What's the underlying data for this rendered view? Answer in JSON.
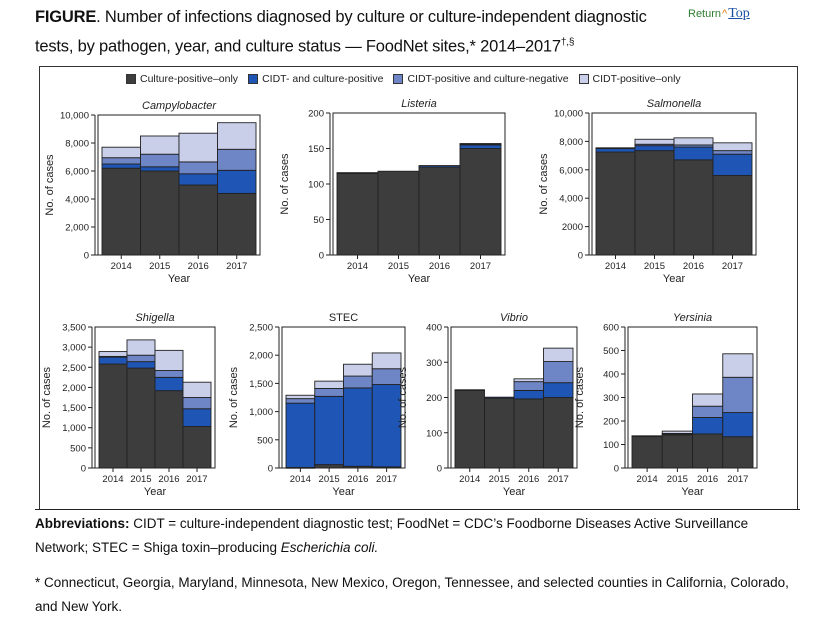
{
  "figure": {
    "label": "FIGURE",
    "title_main": ". Number of infections diagnosed by culture or culture-independent diagnostic tests, by pathogen, year, and culture status — FoodNet sites,",
    "title_star": "*",
    "title_range": " 2014–2017",
    "title_sup": "†,§"
  },
  "return_top": {
    "return_label": "Return",
    "arrow_icon": "^",
    "top_label": "Top"
  },
  "legend": [
    {
      "label": "Culture-positive–only",
      "color": "#3d3d3d"
    },
    {
      "label": "CIDT- and culture-positive",
      "color": "#1f55b5"
    },
    {
      "label": "CIDT-positive and culture-negative",
      "color": "#6f86c6"
    },
    {
      "label": "CIDT-positive–only",
      "color": "#c9cfe9"
    }
  ],
  "abbreviations": {
    "label": "Abbreviations:",
    "text1": " CIDT = culture-independent diagnostic test; FoodNet = CDC’s Foodborne Diseases Active Surveillance Network; STEC = Shiga toxin–producing ",
    "italic": "Escherichia coli.",
    "text2": ""
  },
  "footnote": "* Connecticut, Georgia, Maryland, Minnesota, New Mexico, Oregon, Tennessee, and selected counties in California, Colorado, and New York.",
  "chart_data": [
    {
      "type": "bar",
      "stacked": true,
      "title": "Campylobacter",
      "title_italic": true,
      "xlabel": "Year",
      "ylabel": "No. of cases",
      "categories": [
        "2014",
        "2015",
        "2016",
        "2017"
      ],
      "ylim": [
        0,
        10000
      ],
      "yticks": [
        0,
        2000,
        4000,
        6000,
        8000,
        10000
      ],
      "ytick_labels": [
        "0",
        "2,000",
        "4,000",
        "6,000",
        "8,000",
        "10,000"
      ],
      "series": [
        {
          "name": "Culture-positive–only",
          "values": [
            6200,
            6000,
            5000,
            4400
          ]
        },
        {
          "name": "CIDT- and culture-positive",
          "values": [
            300,
            300,
            800,
            1650
          ]
        },
        {
          "name": "CIDT-positive and culture-negative",
          "values": [
            450,
            900,
            850,
            1500
          ]
        },
        {
          "name": "CIDT-positive–only",
          "values": [
            750,
            1300,
            2050,
            1900
          ]
        }
      ]
    },
    {
      "type": "bar",
      "stacked": true,
      "title": "Listeria",
      "title_italic": true,
      "xlabel": "Year",
      "ylabel": "No. of cases",
      "categories": [
        "2014",
        "2015",
        "2016",
        "2017"
      ],
      "ylim": [
        0,
        200
      ],
      "yticks": [
        0,
        50,
        100,
        150,
        200
      ],
      "ytick_labels": [
        "0",
        "50",
        "100",
        "150",
        "200"
      ],
      "series": [
        {
          "name": "Culture-positive–only",
          "values": [
            115,
            118,
            124,
            150
          ]
        },
        {
          "name": "CIDT- and culture-positive",
          "values": [
            1,
            0,
            2,
            5
          ]
        },
        {
          "name": "CIDT-positive and culture-negative",
          "values": [
            0,
            0,
            0,
            1
          ]
        },
        {
          "name": "CIDT-positive–only",
          "values": [
            0,
            0,
            0,
            1
          ]
        }
      ]
    },
    {
      "type": "bar",
      "stacked": true,
      "title": "Salmonella",
      "title_italic": true,
      "xlabel": "Year",
      "ylabel": "No. of cases",
      "categories": [
        "2014",
        "2015",
        "2016",
        "2017"
      ],
      "ylim": [
        0,
        10000
      ],
      "yticks": [
        0,
        2000,
        4000,
        6000,
        8000,
        10000
      ],
      "ytick_labels": [
        "0",
        "2000",
        "4,000",
        "6,000",
        "8,000",
        "10,000"
      ],
      "series": [
        {
          "name": "Culture-positive–only",
          "values": [
            7250,
            7350,
            6700,
            5600
          ]
        },
        {
          "name": "CIDT- and culture-positive",
          "values": [
            250,
            350,
            900,
            1500
          ]
        },
        {
          "name": "CIDT-positive and culture-negative",
          "values": [
            50,
            100,
            150,
            250
          ]
        },
        {
          "name": "CIDT-positive–only",
          "values": [
            0,
            350,
            500,
            550
          ]
        }
      ]
    },
    {
      "type": "bar",
      "stacked": true,
      "title": "Shigella",
      "title_italic": true,
      "xlabel": "Year",
      "ylabel": "No. of cases",
      "categories": [
        "2014",
        "2015",
        "2016",
        "2017"
      ],
      "ylim": [
        0,
        3500
      ],
      "yticks": [
        0,
        500,
        1000,
        1500,
        2000,
        2500,
        3000,
        3500
      ],
      "ytick_labels": [
        "0",
        "500",
        "1,000",
        "1,500",
        "2,000",
        "2,500",
        "3,000",
        "3,500"
      ],
      "series": [
        {
          "name": "Culture-positive–only",
          "values": [
            2580,
            2480,
            1920,
            1030
          ]
        },
        {
          "name": "CIDT- and culture-positive",
          "values": [
            180,
            160,
            330,
            440
          ]
        },
        {
          "name": "CIDT-positive and culture-negative",
          "values": [
            10,
            160,
            170,
            280
          ]
        },
        {
          "name": "CIDT-positive–only",
          "values": [
            120,
            380,
            500,
            380
          ]
        }
      ]
    },
    {
      "type": "bar",
      "stacked": true,
      "title": "STEC",
      "title_italic": false,
      "xlabel": "Year",
      "ylabel": "No. of cases",
      "categories": [
        "2014",
        "2015",
        "2016",
        "2017"
      ],
      "ylim": [
        0,
        2500
      ],
      "yticks": [
        0,
        500,
        1000,
        1500,
        2000,
        2500
      ],
      "ytick_labels": [
        "0",
        "500",
        "1,000",
        "1,500",
        "2,000",
        "2,500"
      ],
      "series": [
        {
          "name": "Culture-positive–only",
          "values": [
            10,
            60,
            30,
            20
          ]
        },
        {
          "name": "CIDT- and culture-positive",
          "values": [
            1140,
            1210,
            1390,
            1460
          ]
        },
        {
          "name": "CIDT-positive and culture-negative",
          "values": [
            80,
            140,
            210,
            280
          ]
        },
        {
          "name": "CIDT-positive–only",
          "values": [
            60,
            130,
            210,
            280
          ]
        }
      ]
    },
    {
      "type": "bar",
      "stacked": true,
      "title": "Vibrio",
      "title_italic": true,
      "xlabel": "Year",
      "ylabel": "No. of cases",
      "categories": [
        "2014",
        "2015",
        "2016",
        "2017"
      ],
      "ylim": [
        0,
        400
      ],
      "yticks": [
        0,
        100,
        200,
        300,
        400
      ],
      "ytick_labels": [
        "0",
        "100",
        "200",
        "300",
        "400"
      ],
      "series": [
        {
          "name": "Culture-positive–only",
          "values": [
            220,
            198,
            196,
            200
          ]
        },
        {
          "name": "CIDT- and culture-positive",
          "values": [
            2,
            3,
            24,
            42
          ]
        },
        {
          "name": "CIDT-positive and culture-negative",
          "values": [
            0,
            0,
            25,
            60
          ]
        },
        {
          "name": "CIDT-positive–only",
          "values": [
            0,
            0,
            8,
            38
          ]
        }
      ]
    },
    {
      "type": "bar",
      "stacked": true,
      "title": "Yersinia",
      "title_italic": true,
      "xlabel": "Year",
      "ylabel": "No. of cases",
      "categories": [
        "2014",
        "2015",
        "2016",
        "2017"
      ],
      "ylim": [
        0,
        600
      ],
      "yticks": [
        0,
        100,
        200,
        300,
        400,
        500,
        600
      ],
      "ytick_labels": [
        "0",
        "100",
        "200",
        "300",
        "400",
        "500",
        "600"
      ],
      "series": [
        {
          "name": "Culture-positive–only",
          "values": [
            135,
            142,
            145,
            133
          ]
        },
        {
          "name": "CIDT- and culture-positive",
          "values": [
            2,
            2,
            70,
            103
          ]
        },
        {
          "name": "CIDT-positive and culture-negative",
          "values": [
            0,
            3,
            48,
            150
          ]
        },
        {
          "name": "CIDT-positive–only",
          "values": [
            0,
            10,
            52,
            100
          ]
        }
      ]
    }
  ]
}
